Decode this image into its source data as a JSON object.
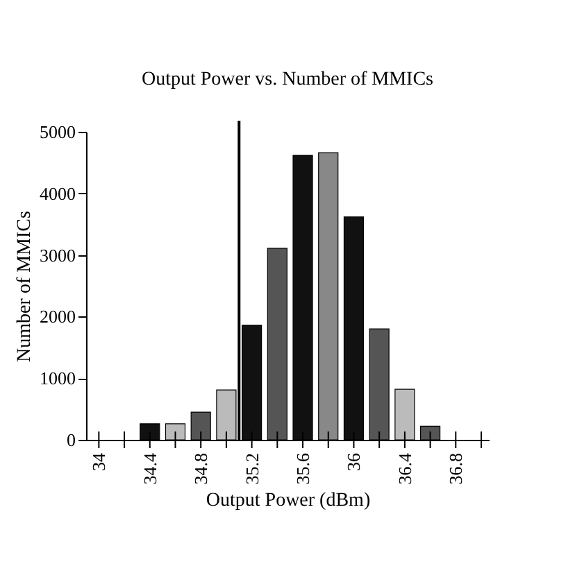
{
  "chart_data": {
    "type": "bar",
    "title": "Output Power vs. Number of MMICs",
    "xlabel": "Output Power (dBm)",
    "ylabel": "Number of MMICs",
    "x": [
      34.4,
      34.6,
      34.8,
      35.0,
      35.2,
      35.4,
      35.6,
      35.8,
      36.0,
      36.2,
      36.4,
      36.6
    ],
    "values": [
      260,
      260,
      450,
      810,
      1860,
      3110,
      4620,
      4660,
      3620,
      1800,
      820,
      220
    ],
    "colors": [
      "#111111",
      "#bbbbbb",
      "#555555",
      "#bbbbbb",
      "#111111",
      "#555555",
      "#111111",
      "#888888",
      "#111111",
      "#555555",
      "#bbbbbb",
      "#555555"
    ],
    "xlim": [
      33.9,
      37.06
    ],
    "xticks": [
      34,
      {
        "value": 34.2,
        "label": null
      },
      34.4,
      {
        "value": 34.6,
        "label": null
      },
      34.8,
      {
        "value": 35.0,
        "label": null
      },
      35.2,
      {
        "value": 35.4,
        "label": null
      },
      35.6,
      {
        "value": 35.8,
        "label": null
      },
      36,
      {
        "value": 36.2,
        "label": null
      },
      36.4,
      {
        "value": 36.6,
        "label": null
      },
      36.8,
      {
        "value": 37.0,
        "label": null
      }
    ],
    "ylim": [
      0,
      5000
    ],
    "yticks": [
      0,
      1000,
      2000,
      3000,
      4000,
      5000
    ],
    "ref_lines": [
      {
        "axis": "x",
        "value": 35.1,
        "label": null,
        "color": "#000000"
      }
    ],
    "grid": false,
    "legend": false
  }
}
